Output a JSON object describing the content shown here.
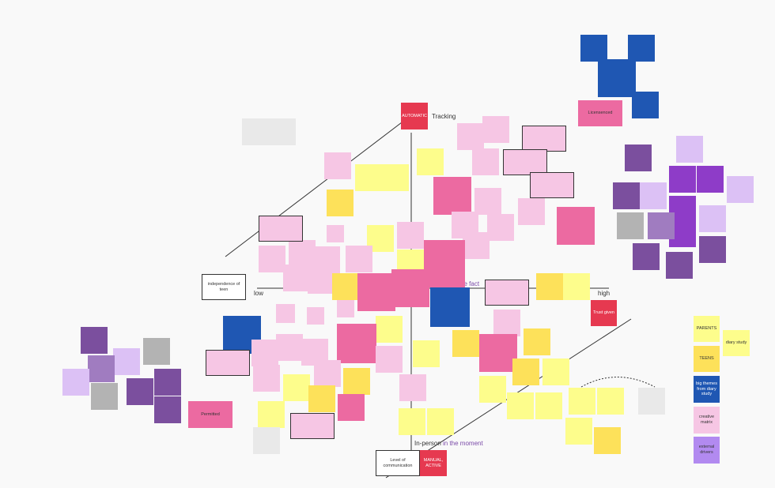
{
  "board": {
    "axis_labels": {
      "tracking": "Tracking",
      "low": "low",
      "high": "high",
      "in_person": "In-person",
      "in_the_moment": "in the moment",
      "after_the_fact": "Person after the fact"
    },
    "notes": {
      "automatic": "AUTOMATIC",
      "licensed": "Licensenced",
      "independence": "independence of teen",
      "trust_given": "Trust given",
      "permitted": "Permitted",
      "level_of_communication": "Level of communication",
      "manual_active": "MANUAL, ACTIVE"
    },
    "legend": {
      "parents": "PARENTS",
      "diary_study": "diary study",
      "teens": "TEENS",
      "big_themes": "big themes from diary study",
      "creative_matrix": "creative matrix",
      "external_drivers": "external drivers"
    }
  }
}
